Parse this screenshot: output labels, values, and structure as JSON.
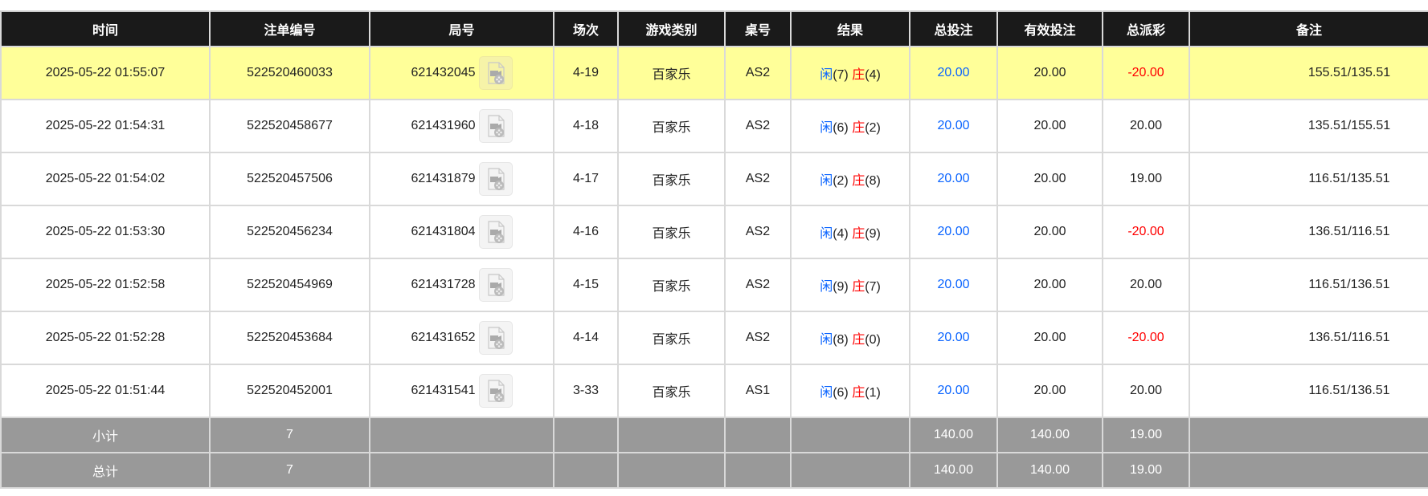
{
  "columns": [
    "时间",
    "注单编号",
    "局号",
    "场次",
    "游戏类别",
    "桌号",
    "结果",
    "总投注",
    "有效投注",
    "总派彩",
    "备注"
  ],
  "rows": [
    {
      "time": "2025-05-22 01:55:07",
      "bet_id": "522520460033",
      "round": "621432045",
      "session": "4-19",
      "game": "百家乐",
      "table": "AS2",
      "player": "闲",
      "player_pts": "(7)",
      "banker": "庄",
      "banker_pts": "(4)",
      "total_bet": "20.00",
      "valid_bet": "20.00",
      "payout": "-20.00",
      "payout_negative": true,
      "note": "155.51/135.51",
      "highlighted": true
    },
    {
      "time": "2025-05-22 01:54:31",
      "bet_id": "522520458677",
      "round": "621431960",
      "session": "4-18",
      "game": "百家乐",
      "table": "AS2",
      "player": "闲",
      "player_pts": "(6)",
      "banker": "庄",
      "banker_pts": "(2)",
      "total_bet": "20.00",
      "valid_bet": "20.00",
      "payout": "20.00",
      "payout_negative": false,
      "note": "135.51/155.51"
    },
    {
      "time": "2025-05-22 01:54:02",
      "bet_id": "522520457506",
      "round": "621431879",
      "session": "4-17",
      "game": "百家乐",
      "table": "AS2",
      "player": "闲",
      "player_pts": "(2)",
      "banker": "庄",
      "banker_pts": "(8)",
      "total_bet": "20.00",
      "valid_bet": "20.00",
      "payout": "19.00",
      "payout_negative": false,
      "note": "116.51/135.51"
    },
    {
      "time": "2025-05-22 01:53:30",
      "bet_id": "522520456234",
      "round": "621431804",
      "session": "4-16",
      "game": "百家乐",
      "table": "AS2",
      "player": "闲",
      "player_pts": "(4)",
      "banker": "庄",
      "banker_pts": "(9)",
      "total_bet": "20.00",
      "valid_bet": "20.00",
      "payout": "-20.00",
      "payout_negative": true,
      "note": "136.51/116.51"
    },
    {
      "time": "2025-05-22 01:52:58",
      "bet_id": "522520454969",
      "round": "621431728",
      "session": "4-15",
      "game": "百家乐",
      "table": "AS2",
      "player": "闲",
      "player_pts": "(9)",
      "banker": "庄",
      "banker_pts": "(7)",
      "total_bet": "20.00",
      "valid_bet": "20.00",
      "payout": "20.00",
      "payout_negative": false,
      "note": "116.51/136.51"
    },
    {
      "time": "2025-05-22 01:52:28",
      "bet_id": "522520453684",
      "round": "621431652",
      "session": "4-14",
      "game": "百家乐",
      "table": "AS2",
      "player": "闲",
      "player_pts": "(8)",
      "banker": "庄",
      "banker_pts": "(0)",
      "total_bet": "20.00",
      "valid_bet": "20.00",
      "payout": "-20.00",
      "payout_negative": true,
      "note": "136.51/116.51"
    },
    {
      "time": "2025-05-22 01:51:44",
      "bet_id": "522520452001",
      "round": "621431541",
      "session": "3-33",
      "game": "百家乐",
      "table": "AS1",
      "player": "闲",
      "player_pts": "(6)",
      "banker": "庄",
      "banker_pts": "(1)",
      "total_bet": "20.00",
      "valid_bet": "20.00",
      "payout": "20.00",
      "payout_negative": false,
      "note": "116.51/136.51"
    }
  ],
  "subtotal": {
    "label": "小计",
    "count": "7",
    "total_bet": "140.00",
    "valid_bet": "140.00",
    "payout": "19.00"
  },
  "grand_total": {
    "label": "总计",
    "count": "7",
    "total_bet": "140.00",
    "valid_bet": "140.00",
    "payout": "19.00"
  },
  "colors": {
    "header_bg": "#1a1a1a",
    "highlight_row": "#ffff99",
    "summary_bg": "#999999",
    "player_blue": "#0a64ff",
    "banker_red": "#ff0000"
  },
  "icons": {
    "replay": "video-replay-icon"
  }
}
